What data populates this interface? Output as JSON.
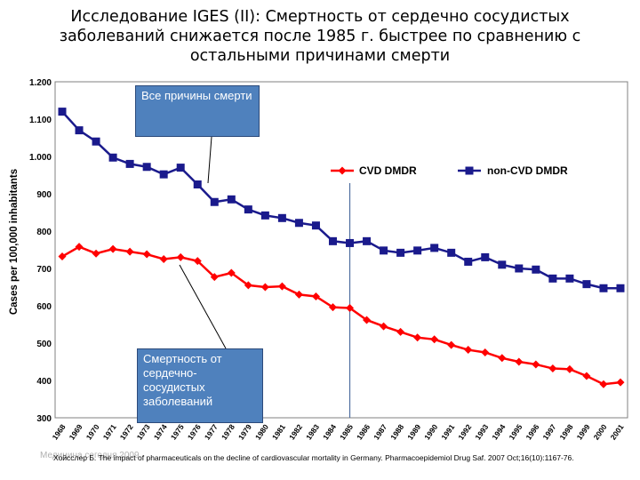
{
  "title": "Исследование IGES (II): Смертность от сердечно сосудистых заболеваний снижается после 1985 г. быстрее по сравнению с остальными причинами смерти",
  "callouts": {
    "all_causes": "Все причины смерти",
    "cvd": "Смертность от сердечно-сосудистых заболеваний"
  },
  "citation": "Хойсслер Б. The impact of pharmaceuticals on the decline of cardiovascular mortality in Germany. Pharmacoepidemiol Drug Saf. 2007 Oct;16(10):1167-76.",
  "faded_text": "Медицина сегодня 2009",
  "colors": {
    "cvd": "#ff0000",
    "noncvd": "#1a1a8c",
    "callout": "#4f81bd",
    "marker_line": "#4f6fa0"
  },
  "chart_data": {
    "type": "line",
    "ylabel": "Cases per 100,000 inhabitants",
    "xlabel": "",
    "ylim": [
      300,
      1200
    ],
    "yticks": [
      300,
      400,
      500,
      600,
      700,
      800,
      900,
      1000,
      1100,
      1200
    ],
    "ytick_labels": [
      "300",
      "400",
      "500",
      "600",
      "700",
      "800",
      "900",
      "1.000",
      "1.100",
      "1.200"
    ],
    "categories": [
      "1968",
      "1969",
      "1970",
      "1971",
      "1972",
      "1973",
      "1974",
      "1975",
      "1976",
      "1977",
      "1978",
      "1979",
      "1980",
      "1981",
      "1982",
      "1983",
      "1984",
      "1985",
      "1986",
      "1987",
      "1988",
      "1989",
      "1990",
      "1991",
      "1992",
      "1993",
      "1994",
      "1995",
      "1996",
      "1997",
      "1998",
      "1999",
      "2000",
      "2001"
    ],
    "vertical_marker": "1985",
    "legend": {
      "position": "top-right"
    },
    "series": [
      {
        "name": "CVD DMDR",
        "color": "#ff0000",
        "marker": "diamond",
        "values": [
          732,
          758,
          740,
          752,
          745,
          738,
          725,
          730,
          720,
          677,
          688,
          655,
          650,
          652,
          630,
          625,
          596,
          594,
          562,
          545,
          530,
          515,
          510,
          495,
          482,
          475,
          460,
          450,
          443,
          432,
          430,
          412,
          390,
          395
        ]
      },
      {
        "name": "non-CVD DMDR",
        "color": "#1a1a8c",
        "marker": "square",
        "values": [
          1120,
          1070,
          1040,
          997,
          980,
          972,
          952,
          970,
          925,
          878,
          885,
          858,
          842,
          835,
          822,
          815,
          773,
          768,
          773,
          748,
          742,
          748,
          755,
          742,
          718,
          730,
          710,
          700,
          697,
          673,
          673,
          658,
          647,
          647
        ]
      }
    ]
  }
}
